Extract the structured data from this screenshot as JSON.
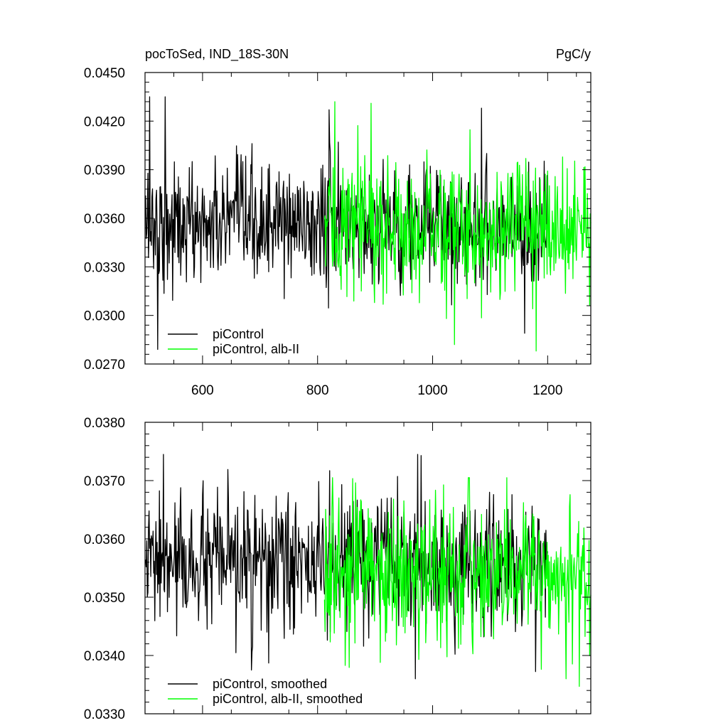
{
  "chart_data": [
    {
      "type": "line",
      "title_left": "pocToSed, IND_18S-30N",
      "title_right": "PgC/y",
      "xlim": [
        500,
        1275
      ],
      "ylim": [
        0.027,
        0.045
      ],
      "x_ticks": [
        600,
        800,
        1000,
        1200
      ],
      "x_tick_labels": [
        "600",
        "800",
        "1000",
        "1200"
      ],
      "y_ticks": [
        0.027,
        0.03,
        0.033,
        0.036,
        0.039,
        0.042,
        0.045
      ],
      "y_tick_labels": [
        "0.0270",
        "0.0300",
        "0.0330",
        "0.0360",
        "0.0390",
        "0.0420",
        "0.0450"
      ],
      "legend_position": "bottom-left",
      "series": [
        {
          "name": "piControl",
          "color": "#000000",
          "x_start": 501,
          "x_end": 1200,
          "points": 700,
          "mean": 0.0356,
          "spread": 0.0022,
          "clip": [
            0.0279,
            0.0435
          ],
          "peaks": [
            [
              508,
              0.0435
            ],
            [
              535,
              0.0435
            ],
            [
              522,
              0.0279
            ],
            [
              1085,
              0.0428
            ],
            [
              820,
              0.0427
            ],
            [
              1160,
              0.0289
            ]
          ]
        },
        {
          "name": "piControl, alb-II",
          "color": "#00ff00",
          "x_start": 812,
          "x_end": 1275,
          "points": 464,
          "mean": 0.0354,
          "spread": 0.0024,
          "clip": [
            0.0278,
            0.0432
          ],
          "peaks": [
            [
              830,
              0.0432
            ],
            [
              893,
              0.0431
            ],
            [
              1180,
              0.0278
            ],
            [
              1038,
              0.0282
            ]
          ]
        }
      ]
    },
    {
      "type": "line",
      "xlim": [
        500,
        1275
      ],
      "ylim": [
        0.033,
        0.038
      ],
      "x_ticks": [
        600,
        800,
        1000,
        1200
      ],
      "y_ticks": [
        0.033,
        0.034,
        0.035,
        0.036,
        0.037,
        0.038
      ],
      "y_tick_labels": [
        "0.0330",
        "0.0340",
        "0.0350",
        "0.0360",
        "0.0370",
        "0.0380"
      ],
      "legend_position": "bottom-left",
      "series": [
        {
          "name": "piControl, smoothed",
          "color": "#000000",
          "x_start": 501,
          "x_end": 1200,
          "points": 700,
          "mean": 0.03555,
          "spread": 0.00065,
          "clip": [
            0.0336,
            0.03745
          ],
          "peaks": [
            [
              532,
              0.03745
            ],
            [
              980,
              0.03743
            ],
            [
              970,
              0.0336
            ],
            [
              715,
              0.03387
            ]
          ]
        },
        {
          "name": "piControl, alb-II, smoothed",
          "color": "#00ff00",
          "x_start": 812,
          "x_end": 1275,
          "points": 464,
          "mean": 0.0354,
          "spread": 0.0007,
          "clip": [
            0.03347,
            0.03705
          ],
          "peaks": [
            [
              826,
              0.03705
            ],
            [
              1255,
              0.03347
            ],
            [
              1232,
              0.0336
            ],
            [
              848,
              0.03383
            ]
          ]
        }
      ]
    }
  ]
}
